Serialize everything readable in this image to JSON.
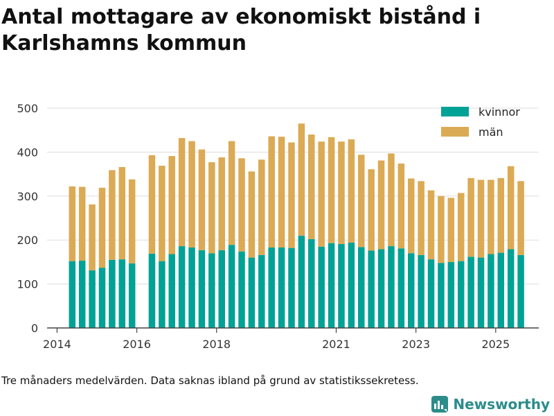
{
  "title": "Antal mottagare av ekonomiskt bistånd i Karlshamns kommun",
  "caption": "Tre månaders medelvärden. Data saknas ibland på grund av statistikssekretess.",
  "brand": "Newsworthy",
  "colors": {
    "kvinnor": "#00a296",
    "man": "#dbaa54",
    "grid": "#dddddd",
    "axis": "#444444"
  },
  "chart_data": {
    "type": "bar",
    "stacked": true,
    "title": "Antal mottagare av ekonomiskt bistånd i Karlshamns kommun",
    "xlabel": "",
    "ylabel": "",
    "ylim": [
      0,
      500
    ],
    "yticks": [
      0,
      100,
      200,
      300,
      400,
      500
    ],
    "xlim": [
      2013.75,
      2026.08
    ],
    "xticks": [
      {
        "value": 2014.0,
        "label": "2014"
      },
      {
        "value": 2016.0,
        "label": "2016"
      },
      {
        "value": 2018.0,
        "label": "2018"
      },
      {
        "value": 2021.0,
        "label": "2021"
      },
      {
        "value": 2023.0,
        "label": "2023"
      },
      {
        "value": 2025.0,
        "label": "2025"
      }
    ],
    "legend": {
      "position": "top-right",
      "entries": [
        "kvinnor",
        "män"
      ]
    },
    "x": [
      2014.38,
      2014.63,
      2014.88,
      2015.13,
      2015.38,
      2015.63,
      2015.88,
      2016.38,
      2016.63,
      2016.88,
      2017.13,
      2017.38,
      2017.63,
      2017.88,
      2018.13,
      2018.38,
      2018.63,
      2018.88,
      2019.13,
      2019.38,
      2019.63,
      2019.88,
      2020.13,
      2020.38,
      2020.63,
      2020.88,
      2021.13,
      2021.38,
      2021.63,
      2021.88,
      2022.13,
      2022.38,
      2022.63,
      2022.88,
      2023.13,
      2023.38,
      2023.63,
      2023.88,
      2024.13,
      2024.38,
      2024.63,
      2024.88,
      2025.13,
      2025.38,
      2025.63
    ],
    "series": [
      {
        "name": "kvinnor",
        "values": [
          152,
          153,
          131,
          137,
          155,
          156,
          147,
          169,
          152,
          168,
          186,
          183,
          177,
          170,
          177,
          189,
          174,
          160,
          166,
          183,
          183,
          182,
          210,
          202,
          185,
          193,
          191,
          194,
          184,
          176,
          179,
          186,
          181,
          170,
          166,
          156,
          148,
          150,
          152,
          162,
          160,
          168,
          171,
          179,
          166
        ]
      },
      {
        "name": "män",
        "values": [
          170,
          168,
          150,
          182,
          204,
          210,
          191,
          224,
          217,
          223,
          246,
          242,
          229,
          207,
          211,
          236,
          212,
          196,
          217,
          253,
          252,
          240,
          255,
          238,
          239,
          241,
          233,
          235,
          210,
          185,
          202,
          211,
          193,
          170,
          168,
          157,
          152,
          146,
          155,
          179,
          177,
          169,
          170,
          189,
          168
        ]
      }
    ]
  }
}
